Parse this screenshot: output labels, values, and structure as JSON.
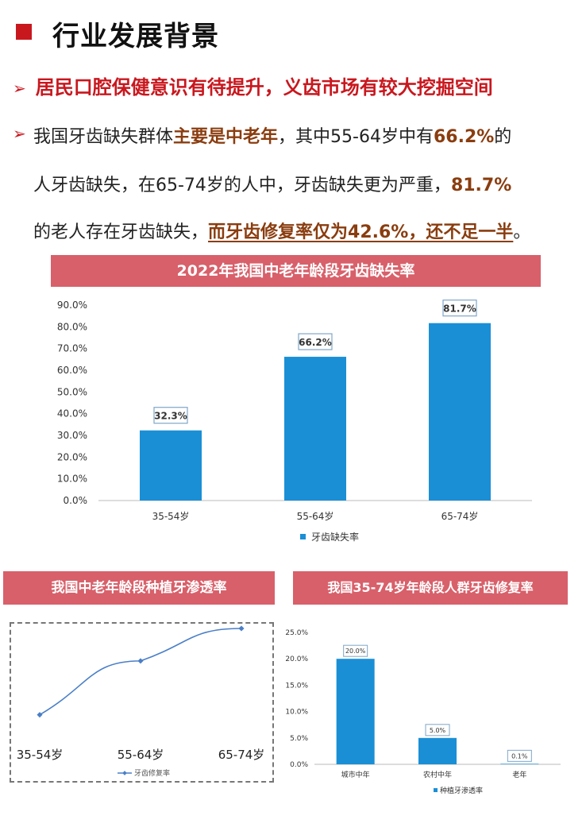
{
  "header": {
    "title": "行业发展背景",
    "subheading": "居民口腔保健意识有待提升，义齿市场有较大挖掘空间"
  },
  "paragraph": {
    "l1_a": "我国牙齿缺失群体",
    "l1_b": "主要是中老年",
    "l1_c": "，其中55-64岁中有",
    "l1_d": "66.2%",
    "l1_e": "的",
    "l2_a": "人牙齿缺失，在65-74岁的人中，牙齿缺失更为严重，",
    "l2_b": "81.7%",
    "l3_a": "的老人存在牙齿缺失，",
    "l3_b": "而牙齿修复率仅为42.6%，还不足一半",
    "l3_c": "。"
  },
  "colors": {
    "accent_red": "#c9171e",
    "banner": "#d8606a",
    "bar": "#1a8fd6",
    "line": "#4a7fc8",
    "highlight": "#8a3d0f"
  },
  "chart_data": [
    {
      "type": "bar",
      "title": "2022年我国中老年龄段牙齿缺失率",
      "categories": [
        "35-54岁",
        "55-64岁",
        "65-74岁"
      ],
      "values": [
        32.3,
        66.2,
        81.7
      ],
      "value_labels": [
        "32.3%",
        "66.2%",
        "81.7%"
      ],
      "y_ticks": [
        "0.0%",
        "10.0%",
        "20.0%",
        "30.0%",
        "40.0%",
        "50.0%",
        "60.0%",
        "70.0%",
        "80.0%",
        "90.0%"
      ],
      "ylim": [
        0,
        90
      ],
      "legend": "牙齿缺失率",
      "legend_position": "bottom",
      "grid": false
    },
    {
      "type": "line",
      "title": "我国中老年龄段种植牙渗透率",
      "categories": [
        "35-54岁",
        "55-64岁",
        "65-74岁"
      ],
      "values": [
        0.1,
        20.0,
        32.0
      ],
      "legend": "牙齿修复率",
      "legend_position": "bottom",
      "grid": false
    },
    {
      "type": "bar",
      "title": "我国35-74岁年龄段人群牙齿修复率",
      "categories": [
        "城市中年",
        "农村中年",
        "老年"
      ],
      "values": [
        20.0,
        5.0,
        0.1
      ],
      "value_labels": [
        "20.0%",
        "5.0%",
        "0.1%"
      ],
      "y_ticks": [
        "0.0%",
        "5.0%",
        "10.0%",
        "15.0%",
        "20.0%",
        "25.0%"
      ],
      "ylim": [
        0,
        25
      ],
      "legend": "种植牙渗透率",
      "legend_position": "bottom",
      "grid": false
    }
  ]
}
